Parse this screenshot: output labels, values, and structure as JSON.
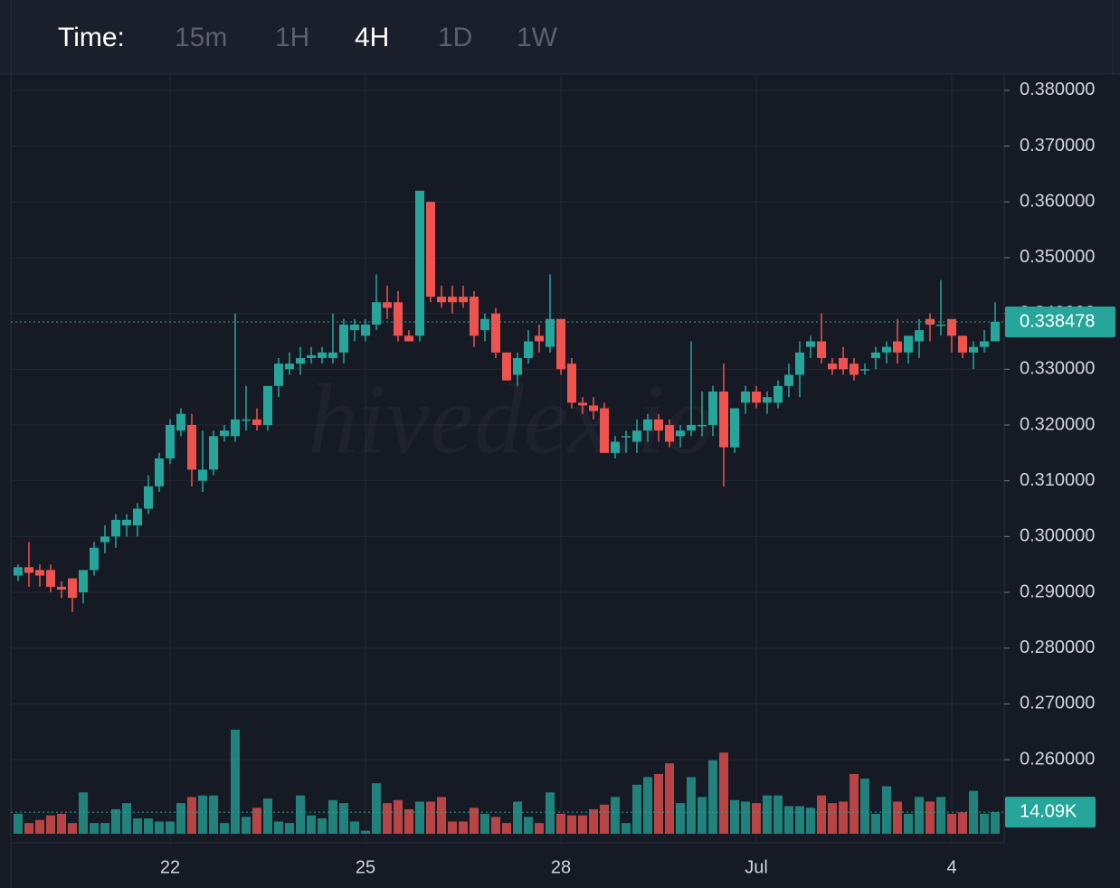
{
  "toolbar": {
    "label": "Time:",
    "intervals": [
      "15m",
      "1H",
      "4H",
      "1D",
      "1W"
    ],
    "active_index": 2
  },
  "chart_data": {
    "type": "candlestick",
    "watermark": "hivedex.io",
    "categories": [
      null,
      null,
      null,
      null,
      null,
      null,
      null,
      null,
      null,
      null,
      null,
      null,
      null,
      null,
      "22",
      null,
      null,
      null,
      null,
      null,
      null,
      null,
      null,
      null,
      null,
      null,
      null,
      null,
      null,
      null,
      null,
      null,
      "25",
      null,
      null,
      null,
      null,
      null,
      null,
      null,
      null,
      null,
      null,
      null,
      null,
      null,
      null,
      null,
      null,
      null,
      "28",
      null,
      null,
      null,
      null,
      null,
      null,
      null,
      null,
      null,
      null,
      null,
      null,
      null,
      null,
      null,
      null,
      null,
      "Jul",
      null,
      null,
      null,
      null,
      null,
      null,
      null,
      null,
      null,
      null,
      null,
      null,
      null,
      null,
      null,
      null,
      null,
      "4",
      null,
      null,
      null,
      null
    ],
    "open": [
      0.293,
      0.2945,
      0.294,
      0.294,
      0.291,
      0.2925,
      0.29,
      0.294,
      0.299,
      0.3,
      0.302,
      0.302,
      0.305,
      0.309,
      0.314,
      0.319,
      0.32,
      0.31,
      0.312,
      0.318,
      0.318,
      0.321,
      0.321,
      0.32,
      0.327,
      0.33,
      0.331,
      0.332,
      0.332,
      0.332,
      0.333,
      0.337,
      0.336,
      0.338,
      0.342,
      0.342,
      0.336,
      0.336,
      0.36,
      0.343,
      0.343,
      0.343,
      0.343,
      0.337,
      0.34,
      0.333,
      0.329,
      0.332,
      0.336,
      0.334,
      0.339,
      0.331,
      0.324,
      0.3235,
      0.323,
      0.315,
      0.318,
      0.317,
      0.319,
      0.321,
      0.32,
      0.318,
      0.319,
      0.32,
      0.32,
      0.326,
      0.316,
      0.324,
      0.326,
      0.324,
      0.324,
      0.327,
      0.329,
      0.334,
      0.335,
      0.331,
      0.332,
      0.331,
      0.33,
      0.332,
      0.333,
      0.335,
      0.333,
      0.335,
      0.339,
      0.338,
      0.339,
      0.336,
      0.333,
      0.334,
      0.335
    ],
    "high": [
      0.295,
      0.299,
      0.295,
      0.295,
      0.292,
      0.2925,
      0.294,
      0.299,
      0.302,
      0.304,
      0.304,
      0.306,
      0.311,
      0.315,
      0.321,
      0.323,
      0.322,
      0.319,
      0.319,
      0.32,
      0.34,
      0.327,
      0.323,
      0.327,
      0.332,
      0.333,
      0.334,
      0.334,
      0.334,
      0.34,
      0.339,
      0.339,
      0.339,
      0.347,
      0.345,
      0.344,
      0.337,
      0.362,
      0.36,
      0.345,
      0.345,
      0.345,
      0.344,
      0.34,
      0.341,
      0.333,
      0.333,
      0.337,
      0.338,
      0.347,
      0.339,
      0.332,
      0.325,
      0.325,
      0.324,
      0.318,
      0.319,
      0.321,
      0.322,
      0.322,
      0.321,
      0.32,
      0.335,
      0.326,
      0.327,
      0.331,
      0.323,
      0.327,
      0.327,
      0.326,
      0.328,
      0.331,
      0.335,
      0.336,
      0.34,
      0.332,
      0.334,
      0.332,
      0.331,
      0.334,
      0.335,
      0.339,
      0.336,
      0.339,
      0.34,
      0.346,
      0.339,
      0.336,
      0.335,
      0.337,
      0.342
    ],
    "low": [
      0.292,
      0.291,
      0.291,
      0.29,
      0.289,
      0.2865,
      0.288,
      0.293,
      0.297,
      0.298,
      0.3,
      0.3,
      0.304,
      0.308,
      0.313,
      0.318,
      0.309,
      0.308,
      0.311,
      0.317,
      0.317,
      0.319,
      0.319,
      0.319,
      0.325,
      0.329,
      0.329,
      0.331,
      0.331,
      0.331,
      0.331,
      0.335,
      0.335,
      0.337,
      0.339,
      0.335,
      0.335,
      0.335,
      0.342,
      0.341,
      0.34,
      0.341,
      0.334,
      0.335,
      0.332,
      0.328,
      0.327,
      0.331,
      0.333,
      0.333,
      0.329,
      0.323,
      0.322,
      0.321,
      0.315,
      0.314,
      0.315,
      0.315,
      0.317,
      0.317,
      0.316,
      0.316,
      0.318,
      0.318,
      0.318,
      0.309,
      0.315,
      0.322,
      0.323,
      0.322,
      0.323,
      0.325,
      0.325,
      0.332,
      0.331,
      0.329,
      0.329,
      0.328,
      0.329,
      0.33,
      0.331,
      0.331,
      0.331,
      0.332,
      0.335,
      0.336,
      0.333,
      0.332,
      0.33,
      0.333,
      0.335
    ],
    "close": [
      0.2945,
      0.2935,
      0.293,
      0.291,
      0.2905,
      0.289,
      0.294,
      0.298,
      0.3,
      0.303,
      0.303,
      0.305,
      0.309,
      0.314,
      0.32,
      0.322,
      0.312,
      0.312,
      0.318,
      0.319,
      0.321,
      0.321,
      0.32,
      0.327,
      0.331,
      0.331,
      0.332,
      0.3325,
      0.333,
      0.333,
      0.338,
      0.338,
      0.338,
      0.342,
      0.341,
      0.336,
      0.335,
      0.362,
      0.343,
      0.342,
      0.342,
      0.342,
      0.336,
      0.339,
      0.333,
      0.328,
      0.332,
      0.335,
      0.335,
      0.339,
      0.33,
      0.324,
      0.3235,
      0.3225,
      0.315,
      0.317,
      0.318,
      0.319,
      0.321,
      0.319,
      0.317,
      0.319,
      0.32,
      0.32,
      0.326,
      0.316,
      0.323,
      0.326,
      0.324,
      0.325,
      0.327,
      0.329,
      0.333,
      0.335,
      0.332,
      0.33,
      0.33,
      0.329,
      0.33,
      0.333,
      0.334,
      0.333,
      0.336,
      0.337,
      0.338,
      0.338,
      0.336,
      0.333,
      0.334,
      0.335,
      0.3385
    ],
    "volume": [
      13000,
      7000,
      9000,
      12000,
      13000,
      7000,
      27000,
      7000,
      7000,
      16000,
      20000,
      10000,
      10000,
      8000,
      8000,
      20000,
      24000,
      25000,
      25000,
      7000,
      68000,
      11000,
      17000,
      23000,
      8000,
      7000,
      25000,
      12000,
      10000,
      22000,
      20000,
      8000,
      2000,
      33000,
      20000,
      22000,
      16000,
      21000,
      21000,
      24000,
      8000,
      8000,
      17000,
      13000,
      11000,
      7000,
      21000,
      11000,
      7000,
      27000,
      13000,
      12000,
      12000,
      16000,
      19000,
      24000,
      7000,
      32000,
      37000,
      39000,
      46000,
      20000,
      37000,
      24000,
      48000,
      53000,
      22000,
      21000,
      20000,
      25000,
      25000,
      18000,
      18000,
      17000,
      25000,
      20000,
      21000,
      39000,
      36000,
      13000,
      31000,
      21000,
      13000,
      24000,
      21000,
      24000,
      13000,
      14000,
      28000,
      13000,
      14090
    ],
    "up_color": "#26a69a",
    "down_color": "#ef5350",
    "ylim": [
      0.2451,
      0.3829
    ],
    "yticks": [
      {
        "value": 0.38,
        "label": "0.380000"
      },
      {
        "value": 0.37,
        "label": "0.370000"
      },
      {
        "value": 0.36,
        "label": "0.360000"
      },
      {
        "value": 0.35,
        "label": "0.350000"
      },
      {
        "value": 0.34,
        "label": "0.340000"
      },
      {
        "value": 0.33,
        "label": "0.330000"
      },
      {
        "value": 0.32,
        "label": "0.320000"
      },
      {
        "value": 0.31,
        "label": "0.310000"
      },
      {
        "value": 0.3,
        "label": "0.300000"
      },
      {
        "value": 0.29,
        "label": "0.290000"
      },
      {
        "value": 0.28,
        "label": "0.280000"
      },
      {
        "value": 0.27,
        "label": "0.270000"
      },
      {
        "value": 0.26,
        "label": "0.260000"
      }
    ],
    "volume_ylim": [
      0,
      75000
    ],
    "current_price": 0.338478,
    "current_volume": {
      "value": 14090,
      "label": "14.09K"
    },
    "grid": true
  }
}
